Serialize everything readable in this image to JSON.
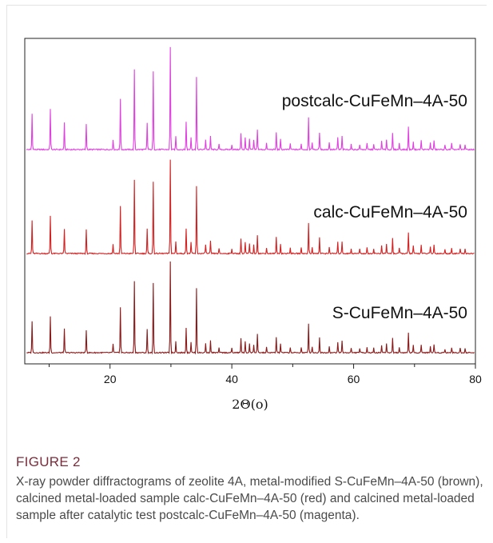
{
  "chart_data": {
    "type": "line",
    "xlabel": "2Θ(o)",
    "xlim": [
      6,
      80
    ],
    "xticks": [
      20,
      40,
      60,
      80
    ],
    "grid": false,
    "legend": "none",
    "peaks": [
      {
        "x": 7.2,
        "h": 0.35
      },
      {
        "x": 10.2,
        "h": 0.4
      },
      {
        "x": 12.5,
        "h": 0.26
      },
      {
        "x": 16.1,
        "h": 0.25
      },
      {
        "x": 20.5,
        "h": 0.1
      },
      {
        "x": 21.7,
        "h": 0.5
      },
      {
        "x": 24.0,
        "h": 0.78
      },
      {
        "x": 26.1,
        "h": 0.26
      },
      {
        "x": 27.1,
        "h": 0.76
      },
      {
        "x": 29.9,
        "h": 1.0
      },
      {
        "x": 30.8,
        "h": 0.13
      },
      {
        "x": 32.5,
        "h": 0.27
      },
      {
        "x": 33.3,
        "h": 0.12
      },
      {
        "x": 34.2,
        "h": 0.71
      },
      {
        "x": 35.7,
        "h": 0.1
      },
      {
        "x": 36.5,
        "h": 0.13
      },
      {
        "x": 37.9,
        "h": 0.05
      },
      {
        "x": 40.0,
        "h": 0.05
      },
      {
        "x": 41.5,
        "h": 0.16
      },
      {
        "x": 42.2,
        "h": 0.12
      },
      {
        "x": 42.9,
        "h": 0.1
      },
      {
        "x": 43.6,
        "h": 0.09
      },
      {
        "x": 44.2,
        "h": 0.2
      },
      {
        "x": 45.7,
        "h": 0.06
      },
      {
        "x": 47.3,
        "h": 0.17
      },
      {
        "x": 48.0,
        "h": 0.1
      },
      {
        "x": 49.6,
        "h": 0.06
      },
      {
        "x": 51.4,
        "h": 0.06
      },
      {
        "x": 52.6,
        "h": 0.32
      },
      {
        "x": 53.2,
        "h": 0.07
      },
      {
        "x": 54.4,
        "h": 0.17
      },
      {
        "x": 56.0,
        "h": 0.07
      },
      {
        "x": 57.4,
        "h": 0.12
      },
      {
        "x": 58.1,
        "h": 0.13
      },
      {
        "x": 59.6,
        "h": 0.05
      },
      {
        "x": 61.0,
        "h": 0.05
      },
      {
        "x": 62.2,
        "h": 0.06
      },
      {
        "x": 63.3,
        "h": 0.05
      },
      {
        "x": 64.6,
        "h": 0.08
      },
      {
        "x": 65.4,
        "h": 0.1
      },
      {
        "x": 66.4,
        "h": 0.16
      },
      {
        "x": 67.5,
        "h": 0.06
      },
      {
        "x": 69.0,
        "h": 0.22
      },
      {
        "x": 69.8,
        "h": 0.08
      },
      {
        "x": 71.1,
        "h": 0.09
      },
      {
        "x": 72.6,
        "h": 0.07
      },
      {
        "x": 73.2,
        "h": 0.09
      },
      {
        "x": 75.0,
        "h": 0.04
      },
      {
        "x": 76.1,
        "h": 0.06
      },
      {
        "x": 77.5,
        "h": 0.05
      },
      {
        "x": 78.3,
        "h": 0.05
      }
    ],
    "series": [
      {
        "name": "postcalc-CuFeMn–4A-50",
        "color": "#e040e0",
        "scale": 0.92
      },
      {
        "name": "calc-CuFeMn–4A-50",
        "color": "#d42020",
        "scale": 0.85
      },
      {
        "name": "S-CuFeMn–4A-50",
        "color": "#8b1a1a",
        "scale": 0.82
      }
    ]
  },
  "figure": {
    "label": "FIGURE 2",
    "caption": "X-ray powder diffractograms of zeolite 4A, metal-modified S-CuFeMn–4A-50 (brown), calcined metal-loaded sample calc-CuFeMn–4A-50 (red) and calcined metal-loaded sample after catalytic test postcalc-CuFeMn–4A-50 (magenta)."
  }
}
